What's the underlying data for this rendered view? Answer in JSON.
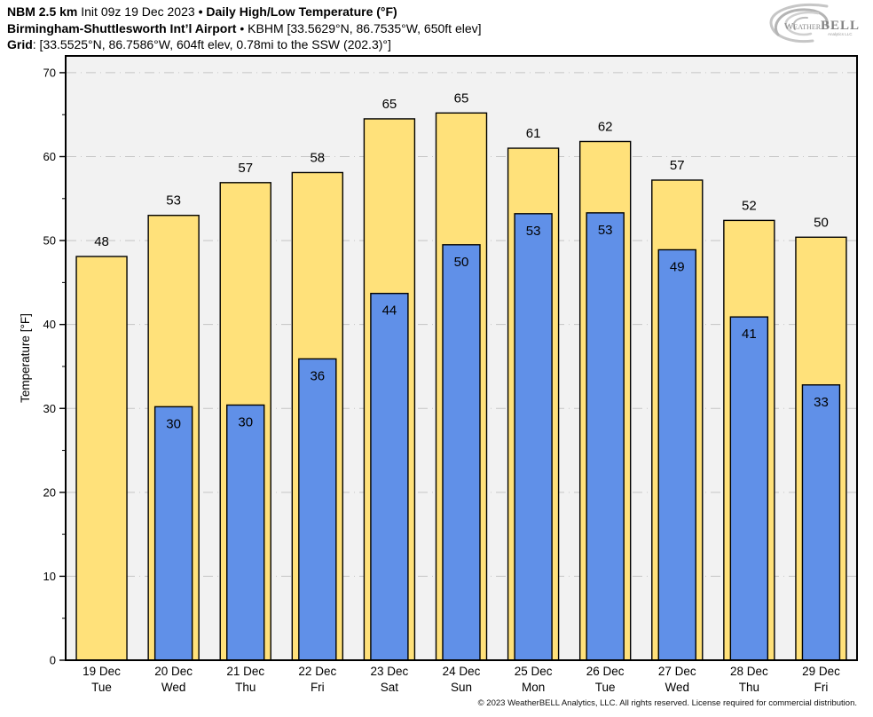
{
  "header": {
    "line1": {
      "model": "NBM 2.5 km",
      "init": "Init 09z 19 Dec 2023",
      "bullet": "•",
      "product": "Daily High/Low Temperature (°F)"
    },
    "line2": {
      "station": "Birmingham-Shuttlesworth Int’l Airport",
      "bullet": "•",
      "details": "KBHM [33.5629°N, 86.7535°W, 650ft elev]"
    },
    "line3": {
      "label": "Grid",
      "details": ": [33.5525°N, 86.7586°W, 604ft elev, 0.78mi to the SSW (202.3)°]"
    }
  },
  "logo": {
    "weather": "Weather",
    "bell": "BELL",
    "subtitle": "Analytics LLC"
  },
  "footer": {
    "copyright": "© 2023 WeatherBELL Analytics, LLC. All rights reserved. License required for commercial distribution."
  },
  "chart_data": {
    "type": "bar",
    "title": "Daily High/Low Temperature (°F)",
    "ylabel": "Temperature [°F]",
    "ylim": [
      0,
      72
    ],
    "yticks": [
      0,
      10,
      20,
      30,
      40,
      50,
      60,
      70
    ],
    "minor_tick_step": 5,
    "grid": {
      "show": true,
      "style": "dash-dot",
      "color": "#c5c5c5"
    },
    "plot_bg": "#f2f2f2",
    "legend": "none",
    "categories": [
      {
        "date": "19 Dec",
        "day": "Tue"
      },
      {
        "date": "20 Dec",
        "day": "Wed"
      },
      {
        "date": "21 Dec",
        "day": "Thu"
      },
      {
        "date": "22 Dec",
        "day": "Fri"
      },
      {
        "date": "23 Dec",
        "day": "Sat"
      },
      {
        "date": "24 Dec",
        "day": "Sun"
      },
      {
        "date": "25 Dec",
        "day": "Mon"
      },
      {
        "date": "26 Dec",
        "day": "Tue"
      },
      {
        "date": "27 Dec",
        "day": "Wed"
      },
      {
        "date": "28 Dec",
        "day": "Thu"
      },
      {
        "date": "29 Dec",
        "day": "Fri"
      }
    ],
    "series": [
      {
        "name": "Daily High",
        "color": "#ffe17a",
        "border": "#000000",
        "labels": [
          "48",
          "53",
          "57",
          "58",
          "65",
          "65",
          "61",
          "62",
          "57",
          "52",
          "50"
        ],
        "values": [
          48.1,
          53.0,
          56.9,
          58.1,
          64.5,
          65.2,
          61.0,
          61.8,
          57.2,
          52.4,
          50.4
        ]
      },
      {
        "name": "Daily Low",
        "color": "#6090e8",
        "border": "#000000",
        "labels": [
          null,
          "30",
          "30",
          "36",
          "44",
          "50",
          "53",
          "53",
          "49",
          "41",
          "33"
        ],
        "values": [
          null,
          30.2,
          30.4,
          35.9,
          43.7,
          49.5,
          53.2,
          53.3,
          48.9,
          40.9,
          32.8
        ]
      }
    ]
  }
}
